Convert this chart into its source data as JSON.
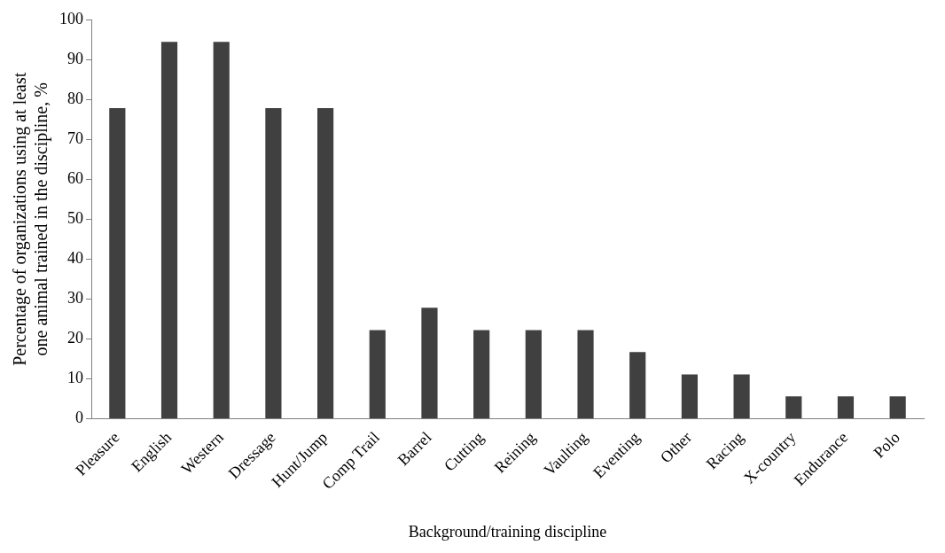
{
  "chart_data": {
    "type": "bar",
    "xlabel": "Background/training discipline",
    "ylabel": "Percentage of organizations using at least one animal trained in the discipline, %",
    "categories": [
      "Pleasure",
      "English",
      "Western",
      "Dressage",
      "Hunt/Jump",
      "Comp Trail",
      "Barrel",
      "Cutting",
      "Reining",
      "Vaulting",
      "Eventing",
      "Other",
      "Racing",
      "X-country",
      "Endurance",
      "Polo"
    ],
    "values": [
      77.8,
      94.4,
      94.4,
      77.8,
      77.8,
      22.2,
      27.8,
      22.2,
      22.2,
      22.2,
      16.7,
      11.1,
      11.1,
      5.6,
      5.6,
      5.6
    ],
    "color": "#404040",
    "ylim": [
      0,
      100
    ],
    "yticks": [
      0,
      10,
      20,
      30,
      40,
      50,
      60,
      70,
      80,
      90,
      100
    ],
    "grid": false,
    "legend": false
  }
}
